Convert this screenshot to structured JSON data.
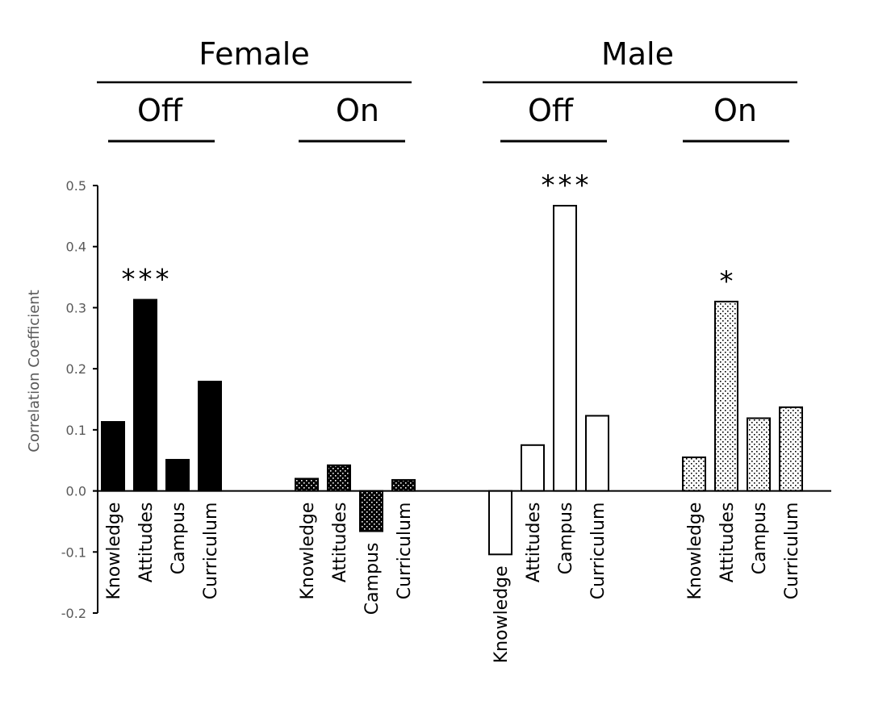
{
  "chart_data": {
    "type": "bar",
    "title": "",
    "xlabel": "",
    "ylabel": "Correlation Coefficient",
    "ylim": [
      -0.2,
      0.5
    ],
    "yticks": [
      "0.5",
      "0.4",
      "0.3",
      "0.2",
      "0.1",
      "0.0",
      "-0.1",
      "-0.2"
    ],
    "ytick_values": [
      0.5,
      0.4,
      0.3,
      0.2,
      0.1,
      0.0,
      -0.1,
      -0.2
    ],
    "grid": false,
    "legend": "none",
    "categories": [
      "Knowledge",
      "Attitudes",
      "Campus",
      "Curriculum"
    ],
    "top_groups": [
      {
        "label": "Female",
        "subgroups": [
          "Off",
          "On"
        ]
      },
      {
        "label": "Male",
        "subgroups": [
          "Off",
          "On"
        ]
      }
    ],
    "series": [
      {
        "name": "Female Off",
        "group": "Female",
        "subgroup": "Off",
        "fill": "solid-black",
        "values": [
          0.113,
          0.313,
          0.051,
          0.179
        ],
        "significance": [
          "",
          "***",
          "",
          ""
        ]
      },
      {
        "name": "Female On",
        "group": "Female",
        "subgroup": "On",
        "fill": "dark-dotted",
        "values": [
          0.02,
          0.042,
          -0.066,
          0.018
        ],
        "significance": [
          "",
          "",
          "",
          ""
        ]
      },
      {
        "name": "Male Off",
        "group": "Male",
        "subgroup": "Off",
        "fill": "white",
        "values": [
          -0.104,
          0.075,
          0.467,
          0.123
        ],
        "significance": [
          "",
          "",
          "***",
          ""
        ]
      },
      {
        "name": "Male On",
        "group": "Male",
        "subgroup": "On",
        "fill": "light-dotted",
        "values": [
          0.055,
          0.31,
          0.119,
          0.137
        ],
        "significance": [
          "",
          "*",
          "",
          ""
        ]
      }
    ],
    "colors": {
      "bar_outline": "#000000",
      "solid": "#000000",
      "white": "#ffffff",
      "axis": "#000000",
      "tick_label": "#595959"
    }
  }
}
